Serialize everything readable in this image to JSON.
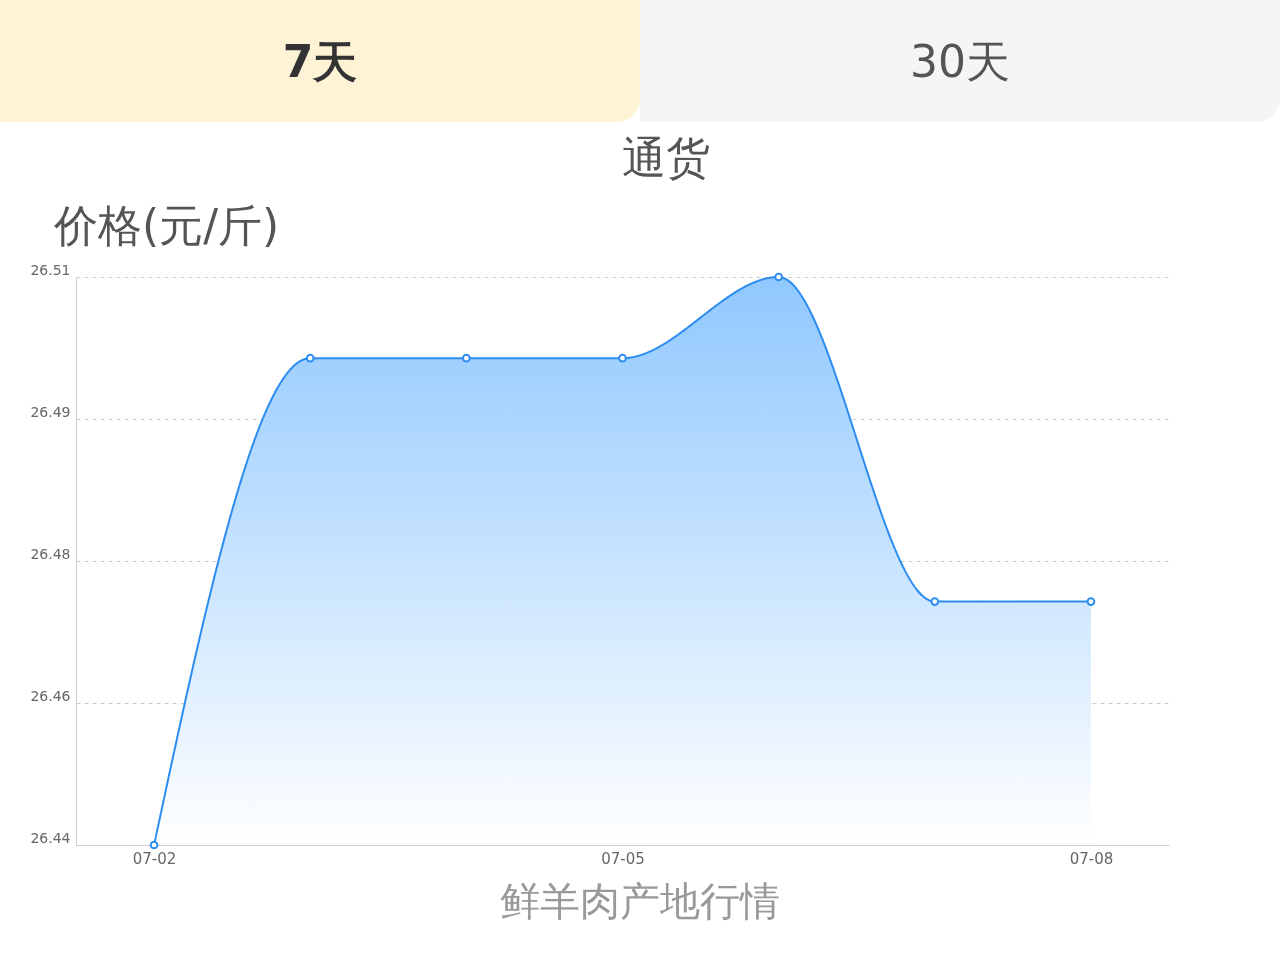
{
  "chart_data": {
    "type": "area",
    "title": "通货",
    "ylabel": "价格(元/斤)",
    "annotations": [
      "7天",
      "30天",
      "鲜羊肉产地行情"
    ],
    "categories": [
      "07-02",
      null,
      null,
      "07-05",
      null,
      null,
      "07-08"
    ],
    "series": [
      {
        "color": "#2d8cf0",
        "values": [
          26.44,
          26.5,
          26.5,
          26.5,
          26.51,
          26.47,
          26.47
        ]
      }
    ],
    "ylim": [
      26.44,
      26.51
    ],
    "yticks": [
      26.44,
      {
        "value": 26.4575,
        "label": "26.46"
      },
      {
        "value": 26.475,
        "label": "26.48"
      },
      {
        "value": 26.4925,
        "label": "26.49"
      },
      26.51
    ],
    "grid": "y",
    "marker": "circle"
  }
}
